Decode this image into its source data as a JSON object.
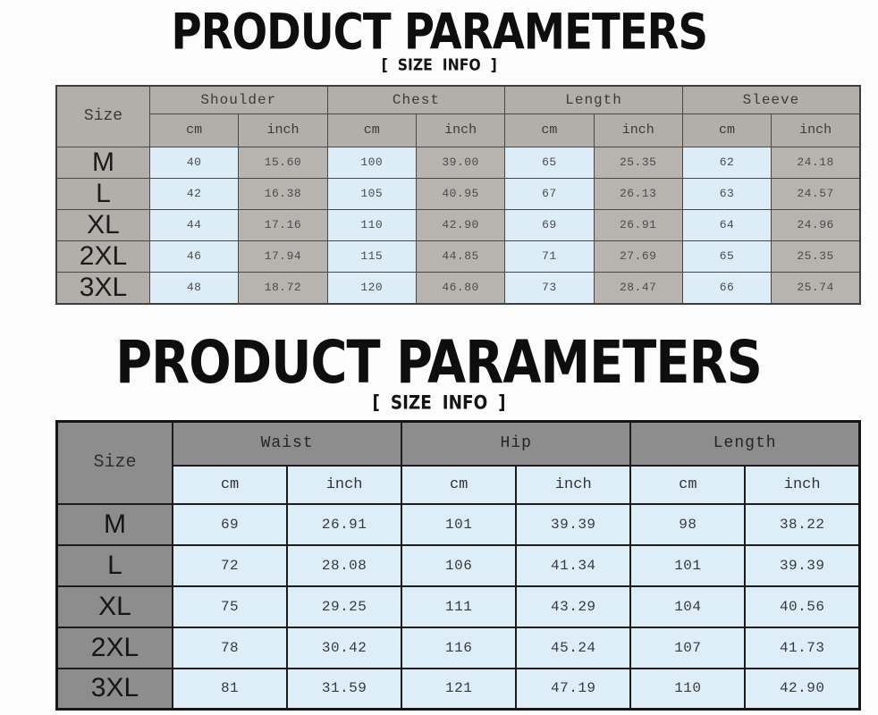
{
  "page": {
    "background": "#fdfdfd"
  },
  "colors": {
    "table1_header_gray": "#b2afaa",
    "table1_cell_blue": "#dcedf8",
    "table1_cell_gray": "#b7b4af",
    "table2_header_gray": "#8e8d8d",
    "table2_cell_blue": "#ddeef8",
    "title_text": "#0e0e0e"
  },
  "sections": [
    {
      "title": "PRODUCT PARAMETERS",
      "subtitle": "[ SIZE INFO ]",
      "table": {
        "corner_label": "Size",
        "groups": [
          "Shoulder",
          "Chest",
          "Length",
          "Sleeve"
        ],
        "units": [
          "cm",
          "inch"
        ],
        "rows": [
          {
            "size": "M",
            "values": [
              "40",
              "15.60",
              "100",
              "39.00",
              "65",
              "25.35",
              "62",
              "24.18"
            ]
          },
          {
            "size": "L",
            "values": [
              "42",
              "16.38",
              "105",
              "40.95",
              "67",
              "26.13",
              "63",
              "24.57"
            ]
          },
          {
            "size": "XL",
            "values": [
              "44",
              "17.16",
              "110",
              "42.90",
              "69",
              "26.91",
              "64",
              "24.96"
            ]
          },
          {
            "size": "2XL",
            "values": [
              "46",
              "17.94",
              "115",
              "44.85",
              "71",
              "27.69",
              "65",
              "25.35"
            ]
          },
          {
            "size": "3XL",
            "values": [
              "48",
              "18.72",
              "120",
              "46.80",
              "73",
              "28.47",
              "66",
              "25.74"
            ]
          }
        ]
      }
    },
    {
      "title": "PRODUCT PARAMETERS",
      "subtitle": "[ SIZE INFO ]",
      "table": {
        "corner_label": "Size",
        "groups": [
          "Waist",
          "Hip",
          "Length"
        ],
        "units": [
          "cm",
          "inch"
        ],
        "rows": [
          {
            "size": "M",
            "values": [
              "69",
              "26.91",
              "101",
              "39.39",
              "98",
              "38.22"
            ]
          },
          {
            "size": "L",
            "values": [
              "72",
              "28.08",
              "106",
              "41.34",
              "101",
              "39.39"
            ]
          },
          {
            "size": "XL",
            "values": [
              "75",
              "29.25",
              "111",
              "43.29",
              "104",
              "40.56"
            ]
          },
          {
            "size": "2XL",
            "values": [
              "78",
              "30.42",
              "116",
              "45.24",
              "107",
              "41.73"
            ]
          },
          {
            "size": "3XL",
            "values": [
              "81",
              "31.59",
              "121",
              "47.19",
              "110",
              "42.90"
            ]
          }
        ]
      }
    }
  ],
  "chart_data": [
    {
      "type": "table",
      "title": "PRODUCT PARAMETERS [ SIZE INFO ] — tops",
      "columns": [
        "Size",
        "Shoulder cm",
        "Shoulder inch",
        "Chest cm",
        "Chest inch",
        "Length cm",
        "Length inch",
        "Sleeve cm",
        "Sleeve inch"
      ],
      "rows": [
        [
          "M",
          40,
          15.6,
          100,
          39.0,
          65,
          25.35,
          62,
          24.18
        ],
        [
          "L",
          42,
          16.38,
          105,
          40.95,
          67,
          26.13,
          63,
          24.57
        ],
        [
          "XL",
          44,
          17.16,
          110,
          42.9,
          69,
          26.91,
          64,
          24.96
        ],
        [
          "2XL",
          46,
          17.94,
          115,
          44.85,
          71,
          27.69,
          65,
          25.35
        ],
        [
          "3XL",
          48,
          18.72,
          120,
          46.8,
          73,
          28.47,
          66,
          25.74
        ]
      ]
    },
    {
      "type": "table",
      "title": "PRODUCT PARAMETERS [ SIZE INFO ] — bottoms",
      "columns": [
        "Size",
        "Waist cm",
        "Waist inch",
        "Hip cm",
        "Hip inch",
        "Length cm",
        "Length inch"
      ],
      "rows": [
        [
          "M",
          69,
          26.91,
          101,
          39.39,
          98,
          38.22
        ],
        [
          "L",
          72,
          28.08,
          106,
          41.34,
          101,
          39.39
        ],
        [
          "XL",
          75,
          29.25,
          111,
          43.29,
          104,
          40.56
        ],
        [
          "2XL",
          78,
          30.42,
          116,
          45.24,
          107,
          41.73
        ],
        [
          "3XL",
          81,
          31.59,
          121,
          47.19,
          110,
          42.9
        ]
      ]
    }
  ]
}
